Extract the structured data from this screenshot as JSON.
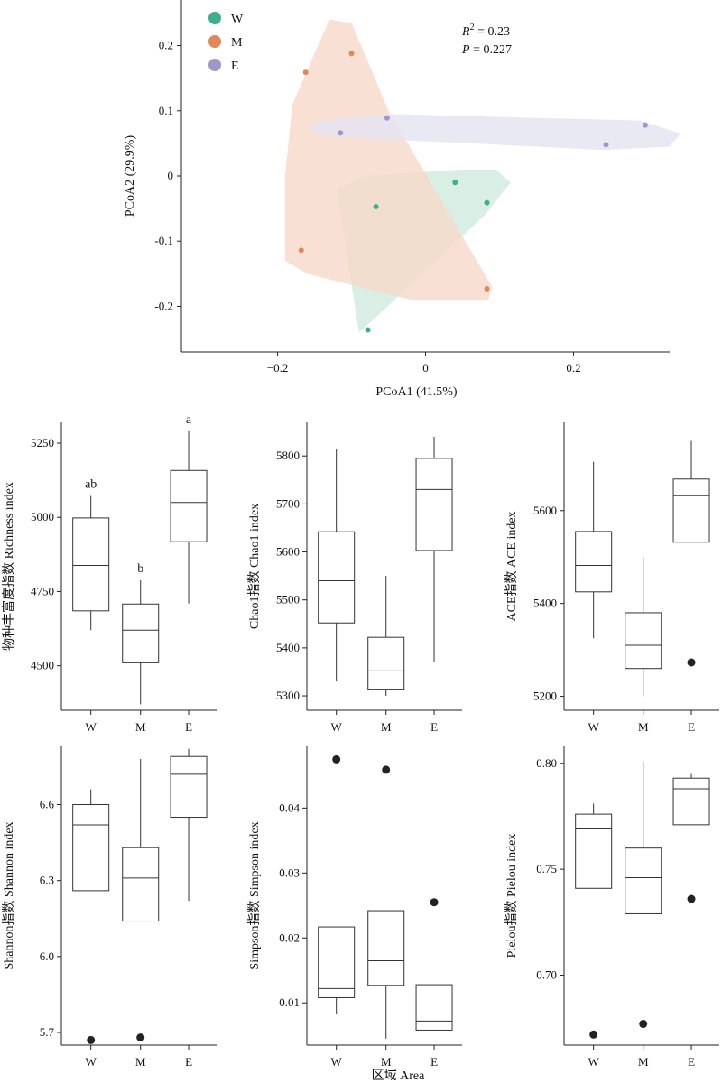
{
  "chart_data": [
    {
      "type": "scatter",
      "id": "pcoa",
      "xlabel": "PCoA1 (41.5%)",
      "ylabel": "PCoA2 (29.9%)",
      "xlim": [
        -0.33,
        0.33
      ],
      "ylim": [
        -0.27,
        0.27
      ],
      "xticks": [
        -0.2,
        0,
        0.2
      ],
      "xtick_labels": [
        "−0.2",
        "0",
        "0.2"
      ],
      "yticks": [
        -0.2,
        -0.1,
        0,
        0.1,
        0.2
      ],
      "ytick_labels": [
        "-0.2",
        "-0.1",
        "0",
        "0.1",
        "0.2"
      ],
      "legend": {
        "placement": "top-left"
      },
      "stats": {
        "r2_sup": "2",
        "r2_value": " = 0.23",
        "p_label": "P",
        "p_value": " = 0.227"
      },
      "series": [
        {
          "name": "W",
          "color": "#3fae8a",
          "fill": "#cfeade",
          "points": [
            [
              0.04,
              -0.01
            ],
            [
              0.083,
              -0.041
            ],
            [
              -0.067,
              -0.047
            ],
            [
              -0.078,
              -0.236
            ]
          ],
          "hull": [
            [
              -0.12,
              -0.02
            ],
            [
              -0.09,
              -0.24
            ],
            [
              -0.07,
              -0.22
            ],
            [
              0.08,
              -0.06
            ],
            [
              0.115,
              -0.01
            ],
            [
              0.095,
              0.01
            ],
            [
              0.05,
              0.01
            ],
            [
              -0.08,
              0.0
            ]
          ]
        },
        {
          "name": "M",
          "color": "#e1875a",
          "fill": "#f6dac9",
          "points": [
            [
              -0.1,
              0.188
            ],
            [
              -0.162,
              0.159
            ],
            [
              -0.168,
              -0.114
            ],
            [
              0.083,
              -0.173
            ]
          ],
          "hull": [
            [
              -0.13,
              0.24
            ],
            [
              -0.1,
              0.235
            ],
            [
              -0.05,
              0.1
            ],
            [
              0.09,
              -0.17
            ],
            [
              0.085,
              -0.19
            ],
            [
              -0.02,
              -0.19
            ],
            [
              -0.16,
              -0.15
            ],
            [
              -0.19,
              -0.13
            ],
            [
              -0.19,
              0.0
            ],
            [
              -0.18,
              0.11
            ]
          ]
        },
        {
          "name": "E",
          "color": "#9d98c8",
          "fill": "#e4e3f1",
          "points": [
            [
              -0.052,
              0.089
            ],
            [
              -0.115,
              0.066
            ],
            [
              0.297,
              0.078
            ],
            [
              0.244,
              0.048
            ]
          ],
          "hull": [
            [
              -0.16,
              0.07
            ],
            [
              -0.145,
              0.085
            ],
            [
              -0.05,
              0.095
            ],
            [
              0.29,
              0.085
            ],
            [
              0.345,
              0.065
            ],
            [
              0.33,
              0.045
            ],
            [
              0.24,
              0.04
            ],
            [
              -0.12,
              0.06
            ]
          ]
        }
      ]
    },
    {
      "type": "box",
      "id": "richness",
      "ylabel": "物种丰富度指数 Richness index",
      "categories": [
        "W",
        "M",
        "E"
      ],
      "ylim": [
        4350,
        5320
      ],
      "yticks": [
        4500,
        4750,
        5000,
        5250
      ],
      "boxes": [
        {
          "min": 4620,
          "q1": 4685,
          "median": 4838,
          "q3": 4998,
          "max": 5072,
          "outliers": [],
          "letter": "ab"
        },
        {
          "min": 4370,
          "q1": 4510,
          "median": 4620,
          "q3": 4708,
          "max": 4788,
          "outliers": [],
          "letter": "b"
        },
        {
          "min": 4710,
          "q1": 4918,
          "median": 5050,
          "q3": 5158,
          "max": 5290,
          "outliers": [],
          "letter": "a"
        }
      ]
    },
    {
      "type": "box",
      "id": "chao1",
      "ylabel": "Chao1指数 Chao1 index",
      "categories": [
        "W",
        "M",
        "E"
      ],
      "ylim": [
        5270,
        5870
      ],
      "yticks": [
        5300,
        5400,
        5500,
        5600,
        5700,
        5800
      ],
      "boxes": [
        {
          "min": 5330,
          "q1": 5452,
          "median": 5540,
          "q3": 5642,
          "max": 5815,
          "outliers": []
        },
        {
          "min": 5300,
          "q1": 5314,
          "median": 5352,
          "q3": 5422,
          "max": 5550,
          "outliers": []
        },
        {
          "min": 5370,
          "q1": 5603,
          "median": 5730,
          "q3": 5795,
          "max": 5840,
          "outliers": []
        }
      ]
    },
    {
      "type": "box",
      "id": "ace",
      "ylabel": "ACE指数 ACE index",
      "categories": [
        "W",
        "M",
        "E"
      ],
      "ylim": [
        5170,
        5790
      ],
      "yticks": [
        5200,
        5400,
        5600
      ],
      "boxes": [
        {
          "min": 5325,
          "q1": 5425,
          "median": 5482,
          "q3": 5555,
          "max": 5705,
          "outliers": []
        },
        {
          "min": 5200,
          "q1": 5260,
          "median": 5310,
          "q3": 5380,
          "max": 5500,
          "outliers": []
        },
        {
          "min": 5532,
          "q1": 5532,
          "median": 5632,
          "q3": 5668,
          "max": 5750,
          "outliers": [
            5273
          ]
        }
      ]
    },
    {
      "type": "box",
      "id": "shannon",
      "ylabel": "Shannon指数 Shannon index",
      "categories": [
        "W",
        "M",
        "E"
      ],
      "ylim": [
        5.65,
        6.83
      ],
      "yticks": [
        5.7,
        6.0,
        6.3,
        6.6
      ],
      "ytick_labels": [
        "5.7",
        "6.0",
        "6.3",
        "6.6"
      ],
      "boxes": [
        {
          "min": 6.26,
          "q1": 6.26,
          "median": 6.52,
          "q3": 6.6,
          "max": 6.66,
          "outliers": [
            5.67
          ]
        },
        {
          "min": 6.14,
          "q1": 6.14,
          "median": 6.31,
          "q3": 6.43,
          "max": 6.78,
          "outliers": [
            5.68
          ]
        },
        {
          "min": 6.22,
          "q1": 6.55,
          "median": 6.72,
          "q3": 6.79,
          "max": 6.82,
          "outliers": []
        }
      ]
    },
    {
      "type": "box",
      "id": "simpson",
      "ylabel": "Simpson指数 Simpson index",
      "categories": [
        "W",
        "M",
        "E"
      ],
      "ylim": [
        0.0035,
        0.0495
      ],
      "yticks": [
        0.01,
        0.02,
        0.03,
        0.04
      ],
      "ytick_labels": [
        "0.01",
        "0.02",
        "0.03",
        "0.04"
      ],
      "boxes": [
        {
          "min": 0.0083,
          "q1": 0.0108,
          "median": 0.0122,
          "q3": 0.0217,
          "max": 0.0217,
          "outliers": [
            0.0475
          ]
        },
        {
          "min": 0.0045,
          "q1": 0.0127,
          "median": 0.0165,
          "q3": 0.0242,
          "max": 0.0242,
          "outliers": [
            0.0459
          ]
        },
        {
          "min": 0.0058,
          "q1": 0.0058,
          "median": 0.0072,
          "q3": 0.0128,
          "max": 0.0128,
          "outliers": [
            0.0255
          ]
        }
      ]
    },
    {
      "type": "box",
      "id": "pielou",
      "ylabel": "Pielou指数 Pielou index",
      "categories": [
        "W",
        "M",
        "E"
      ],
      "ylim": [
        0.667,
        0.808
      ],
      "yticks": [
        0.7,
        0.75,
        0.8
      ],
      "ytick_labels": [
        "0.70",
        "0.75",
        "0.80"
      ],
      "boxes": [
        {
          "min": 0.741,
          "q1": 0.741,
          "median": 0.769,
          "q3": 0.776,
          "max": 0.781,
          "outliers": [
            0.672
          ]
        },
        {
          "min": 0.729,
          "q1": 0.729,
          "median": 0.746,
          "q3": 0.76,
          "max": 0.801,
          "outliers": [
            0.677
          ]
        },
        {
          "min": 0.771,
          "q1": 0.771,
          "median": 0.788,
          "q3": 0.793,
          "max": 0.795,
          "outliers": [
            0.736
          ]
        }
      ]
    }
  ],
  "shared_xlabel": "区域 Area"
}
